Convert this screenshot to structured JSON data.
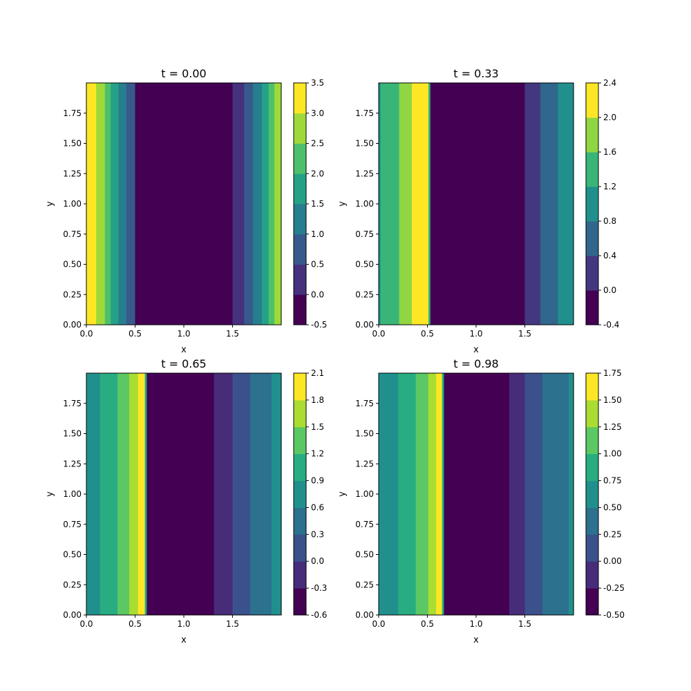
{
  "chart_data": [
    {
      "type": "heatmap",
      "title": "t = 0.00",
      "xlabel": "x",
      "ylabel": "y",
      "xlim": [
        0,
        2
      ],
      "ylim": [
        0,
        2
      ],
      "xticks": [
        "0.0",
        "0.5",
        "1.0",
        "1.5"
      ],
      "yticks": [
        "0.00",
        "0.25",
        "0.50",
        "0.75",
        "1.00",
        "1.25",
        "1.50",
        "1.75"
      ],
      "colorbar_ticks": [
        "-0.5",
        "0.0",
        "0.5",
        "1.0",
        "1.5",
        "2.0",
        "2.5",
        "3.0",
        "3.5"
      ],
      "colorbar_range": [
        -0.5,
        3.5
      ],
      "bands": [
        {
          "x0": 0.0,
          "x1": 0.1,
          "level": 7
        },
        {
          "x0": 0.1,
          "x1": 0.19,
          "level": 6
        },
        {
          "x0": 0.19,
          "x1": 0.25,
          "level": 5
        },
        {
          "x0": 0.25,
          "x1": 0.33,
          "level": 4
        },
        {
          "x0": 0.33,
          "x1": 0.41,
          "level": 3
        },
        {
          "x0": 0.41,
          "x1": 0.5,
          "level": 2
        },
        {
          "x0": 0.5,
          "x1": 1.5,
          "level": 0
        },
        {
          "x0": 1.5,
          "x1": 1.62,
          "level": 1
        },
        {
          "x0": 1.62,
          "x1": 1.71,
          "level": 2
        },
        {
          "x0": 1.71,
          "x1": 1.8,
          "level": 3
        },
        {
          "x0": 1.8,
          "x1": 1.87,
          "level": 4
        },
        {
          "x0": 1.87,
          "x1": 1.93,
          "level": 5
        },
        {
          "x0": 1.93,
          "x1": 2.0,
          "level": 6
        }
      ]
    },
    {
      "type": "heatmap",
      "title": "t = 0.33",
      "xlabel": "x",
      "ylabel": "y",
      "xlim": [
        0,
        2
      ],
      "ylim": [
        0,
        2
      ],
      "xticks": [
        "0.0",
        "0.5",
        "1.0",
        "1.5"
      ],
      "yticks": [
        "0.00",
        "0.25",
        "0.50",
        "0.75",
        "1.00",
        "1.25",
        "1.50",
        "1.75"
      ],
      "colorbar_ticks": [
        "-0.4",
        "0.0",
        "0.4",
        "0.8",
        "1.2",
        "1.6",
        "2.0",
        "2.4"
      ],
      "colorbar_range": [
        -0.4,
        2.4
      ],
      "bands": [
        {
          "x0": 0.0,
          "x1": 0.02,
          "level": 3
        },
        {
          "x0": 0.02,
          "x1": 0.21,
          "level": 4
        },
        {
          "x0": 0.21,
          "x1": 0.34,
          "level": 5
        },
        {
          "x0": 0.34,
          "x1": 0.51,
          "level": 6
        },
        {
          "x0": 0.51,
          "x1": 0.53,
          "level": 4
        },
        {
          "x0": 0.53,
          "x1": 1.5,
          "level": 0
        },
        {
          "x0": 1.5,
          "x1": 1.66,
          "level": 1
        },
        {
          "x0": 1.66,
          "x1": 1.84,
          "level": 2
        },
        {
          "x0": 1.84,
          "x1": 2.0,
          "level": 3
        }
      ]
    },
    {
      "type": "heatmap",
      "title": "t = 0.65",
      "xlabel": "x",
      "ylabel": "y",
      "xlim": [
        0,
        2
      ],
      "ylim": [
        0,
        2
      ],
      "xticks": [
        "0.0",
        "0.5",
        "1.0",
        "1.5"
      ],
      "yticks": [
        "0.00",
        "0.25",
        "0.50",
        "0.75",
        "1.00",
        "1.25",
        "1.50",
        "1.75"
      ],
      "colorbar_ticks": [
        "-0.6",
        "-0.3",
        "0.0",
        "0.3",
        "0.6",
        "0.9",
        "1.2",
        "1.5",
        "1.8",
        "2.1"
      ],
      "colorbar_range": [
        -0.6,
        2.1
      ],
      "bands": [
        {
          "x0": 0.0,
          "x1": 0.14,
          "level": 4
        },
        {
          "x0": 0.14,
          "x1": 0.32,
          "level": 5
        },
        {
          "x0": 0.32,
          "x1": 0.44,
          "level": 6
        },
        {
          "x0": 0.44,
          "x1": 0.53,
          "level": 7
        },
        {
          "x0": 0.53,
          "x1": 0.6,
          "level": 8
        },
        {
          "x0": 0.6,
          "x1": 0.62,
          "level": 5
        },
        {
          "x0": 0.62,
          "x1": 1.31,
          "level": 0
        },
        {
          "x0": 1.31,
          "x1": 1.5,
          "level": 1
        },
        {
          "x0": 1.5,
          "x1": 1.68,
          "level": 2
        },
        {
          "x0": 1.68,
          "x1": 1.9,
          "level": 3
        },
        {
          "x0": 1.9,
          "x1": 2.0,
          "level": 4
        }
      ]
    },
    {
      "type": "heatmap",
      "title": "t = 0.98",
      "xlabel": "x",
      "ylabel": "y",
      "xlim": [
        0,
        2
      ],
      "ylim": [
        0,
        2
      ],
      "xticks": [
        "0.0",
        "0.5",
        "1.0",
        "1.5"
      ],
      "yticks": [
        "0.00",
        "0.25",
        "0.50",
        "0.75",
        "1.00",
        "1.25",
        "1.50",
        "1.75"
      ],
      "colorbar_ticks": [
        "-0.50",
        "-0.25",
        "0.00",
        "0.25",
        "0.50",
        "0.75",
        "1.00",
        "1.25",
        "1.50",
        "1.75"
      ],
      "colorbar_range": [
        -0.5,
        1.75
      ],
      "bands": [
        {
          "x0": 0.0,
          "x1": 0.2,
          "level": 4
        },
        {
          "x0": 0.2,
          "x1": 0.38,
          "level": 5
        },
        {
          "x0": 0.38,
          "x1": 0.51,
          "level": 6
        },
        {
          "x0": 0.51,
          "x1": 0.59,
          "level": 7
        },
        {
          "x0": 0.59,
          "x1": 0.65,
          "level": 8
        },
        {
          "x0": 0.65,
          "x1": 0.67,
          "level": 5
        },
        {
          "x0": 0.67,
          "x1": 1.34,
          "level": 0
        },
        {
          "x0": 1.34,
          "x1": 1.5,
          "level": 1
        },
        {
          "x0": 1.5,
          "x1": 1.68,
          "level": 2
        },
        {
          "x0": 1.68,
          "x1": 1.95,
          "level": 3
        },
        {
          "x0": 1.95,
          "x1": 2.0,
          "level": 4
        }
      ]
    }
  ]
}
